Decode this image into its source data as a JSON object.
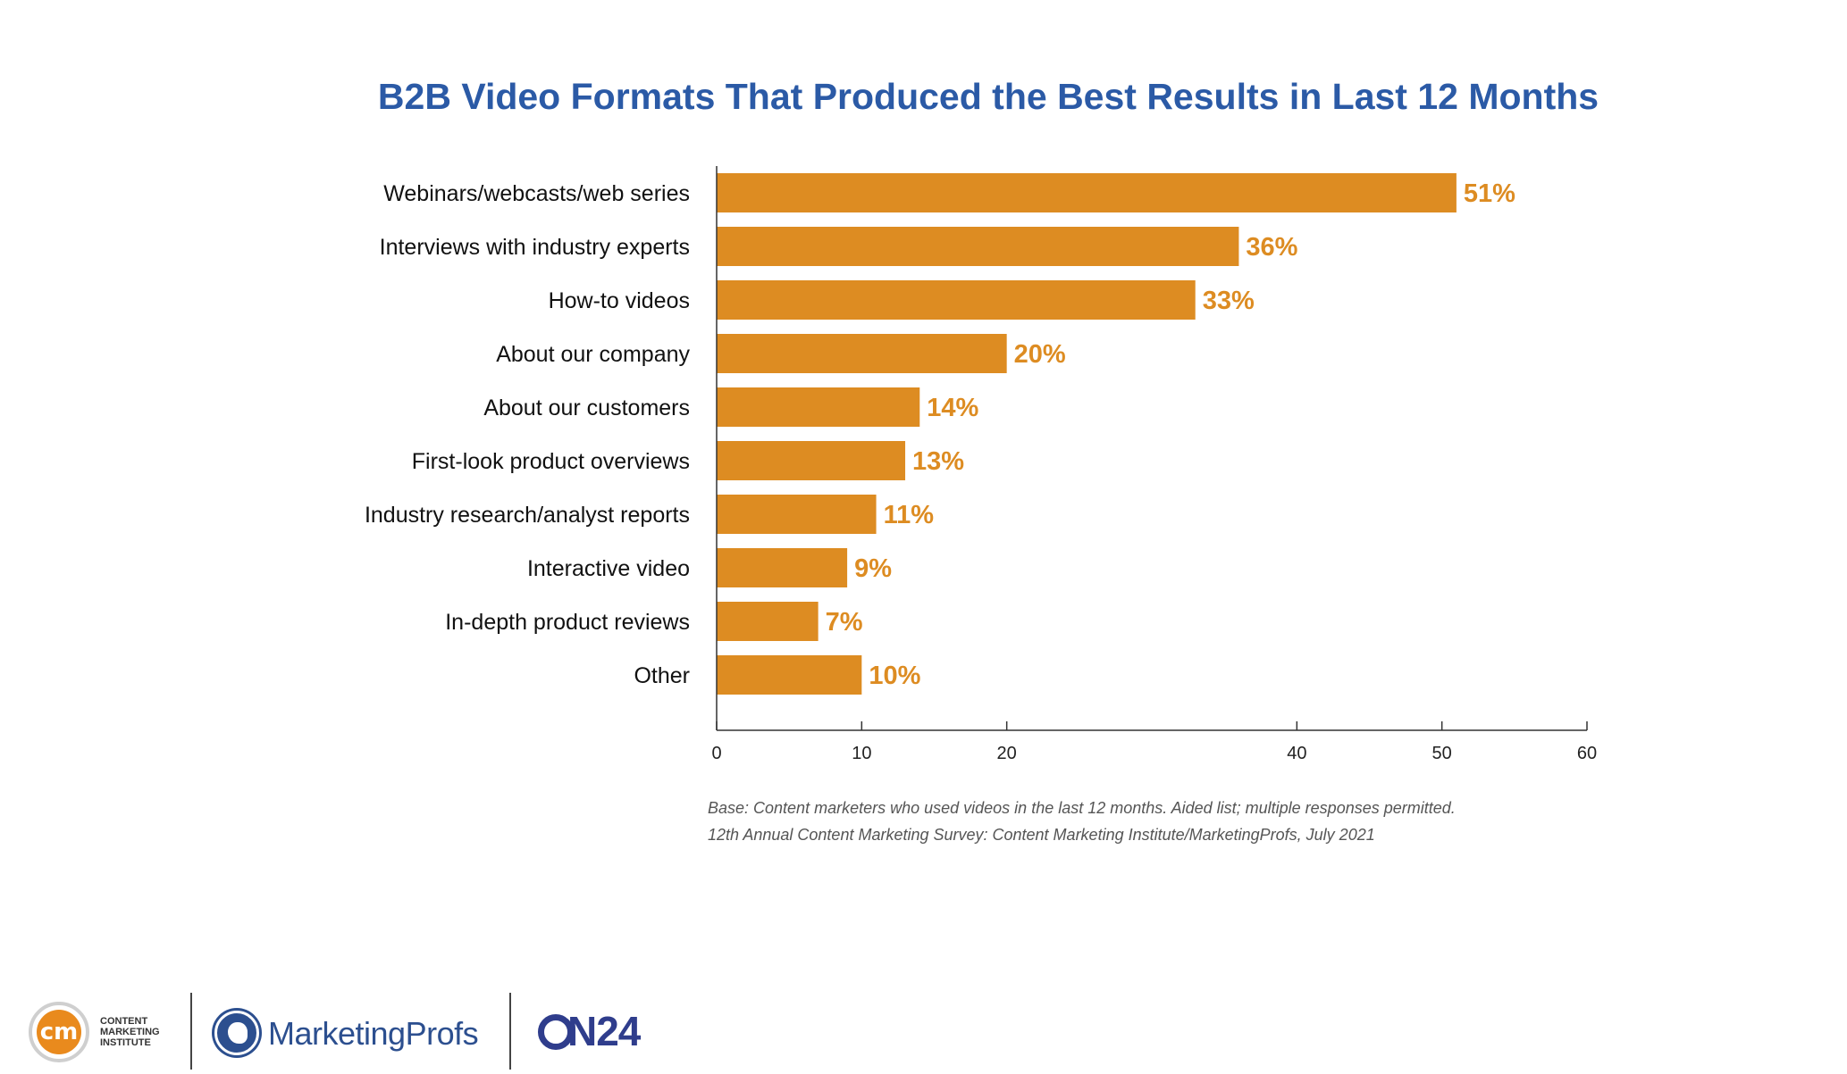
{
  "chart_data": {
    "type": "bar",
    "orientation": "horizontal",
    "title": "B2B Video Formats That Produced the Best Results in Last 12 Months",
    "categories": [
      "Webinars/webcasts/web series",
      "Interviews with industry experts",
      "How-to videos",
      "About our company",
      "About our customers",
      "First-look product overviews",
      "Industry research/analyst reports",
      "Interactive video",
      "In-depth product reviews",
      "Other"
    ],
    "values": [
      51,
      36,
      33,
      20,
      14,
      13,
      11,
      9,
      7,
      10
    ],
    "value_labels": [
      "51%",
      "36%",
      "33%",
      "20%",
      "14%",
      "13%",
      "11%",
      "9%",
      "7%",
      "10%"
    ],
    "xlim": [
      0,
      60
    ],
    "xticks": [
      0,
      10,
      20,
      40,
      50,
      60
    ],
    "xlabel": "",
    "ylabel": "",
    "grid": false,
    "legend": "none",
    "bar_color": "#dd8c22",
    "label_color": "#dd8c22",
    "title_color": "#2b5aa6"
  },
  "notes": {
    "line1": "Base: Content marketers who used videos in the last 12 months. Aided list; multiple responses permitted.",
    "line2": "12th Annual Content Marketing Survey: Content Marketing Institute/MarketingProfs, July 2021"
  },
  "logos": {
    "cmi_mark": "cm",
    "cmi_line1": "CONTENT",
    "cmi_line2": "MARKETING",
    "cmi_line3": "INSTITUTE",
    "marketingprofs": "MarketingProfs",
    "on24": "N24",
    "icons": [
      "cmi-logo-icon",
      "marketingprofs-logo-icon",
      "on24-logo-icon"
    ]
  }
}
